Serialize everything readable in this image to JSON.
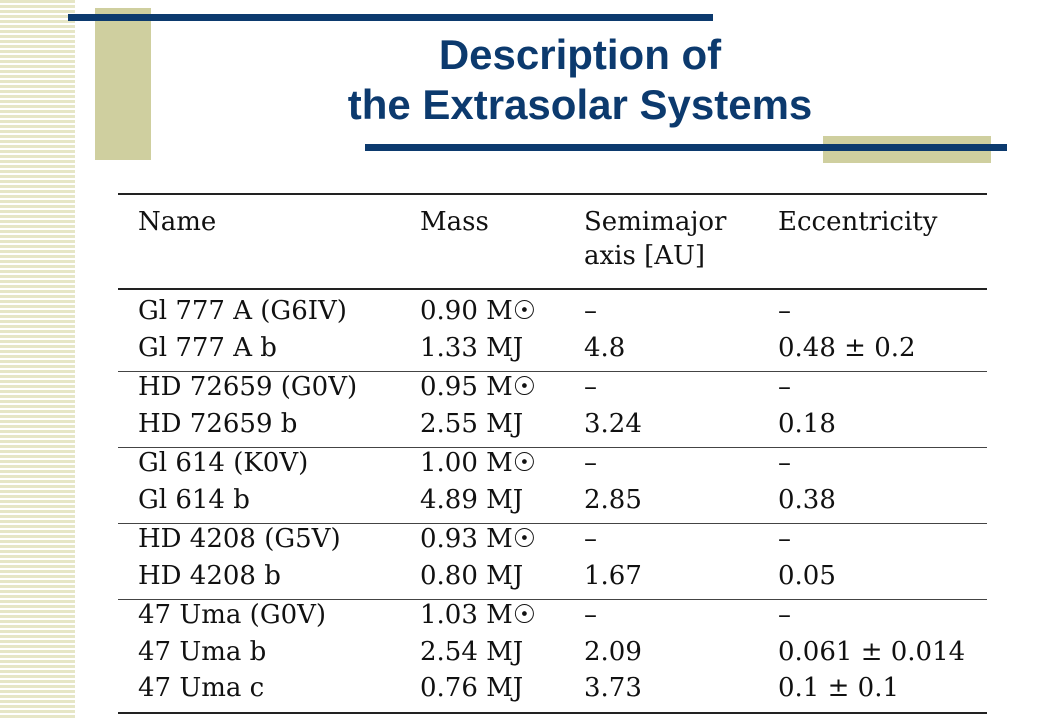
{
  "title": {
    "line1": "Description of",
    "line2": "the Extrasolar Systems"
  },
  "table": {
    "headers": {
      "name": "Name",
      "mass": "Mass",
      "semimajor_line1": "Semimajor",
      "semimajor_line2": "axis [AU]",
      "eccentricity": "Eccentricity"
    },
    "groups": [
      {
        "rows": [
          {
            "name": "Gl 777 A (G6IV)",
            "mass": "0.90 M☉",
            "axis": "–",
            "ecc": "–"
          },
          {
            "name": "Gl 777 A b",
            "mass": "1.33 MJ",
            "axis": "4.8",
            "ecc": "0.48 ± 0.2"
          }
        ]
      },
      {
        "rows": [
          {
            "name": "HD 72659 (G0V)",
            "mass": "0.95 M☉",
            "axis": "–",
            "ecc": "–"
          },
          {
            "name": "HD 72659 b",
            "mass": "2.55 MJ",
            "axis": "3.24",
            "ecc": "0.18"
          }
        ]
      },
      {
        "rows": [
          {
            "name": "Gl 614 (K0V)",
            "mass": "1.00 M☉",
            "axis": "–",
            "ecc": "–"
          },
          {
            "name": "Gl 614 b",
            "mass": "4.89 MJ",
            "axis": "2.85",
            "ecc": "0.38"
          }
        ]
      },
      {
        "rows": [
          {
            "name": "HD 4208 (G5V)",
            "mass": "0.93 M☉",
            "axis": "–",
            "ecc": "–"
          },
          {
            "name": "HD 4208 b",
            "mass": "0.80 MJ",
            "axis": "1.67",
            "ecc": "0.05"
          }
        ]
      },
      {
        "rows": [
          {
            "name": "47 Uma (G0V)",
            "mass": "1.03 M☉",
            "axis": "–",
            "ecc": "–"
          },
          {
            "name": "47 Uma b",
            "mass": "2.54 MJ",
            "axis": "2.09",
            "ecc": "0.061 ± 0.014"
          },
          {
            "name": "47 Uma c",
            "mass": "0.76 MJ",
            "axis": "3.73",
            "ecc": "0.1 ± 0.1"
          }
        ]
      }
    ]
  }
}
